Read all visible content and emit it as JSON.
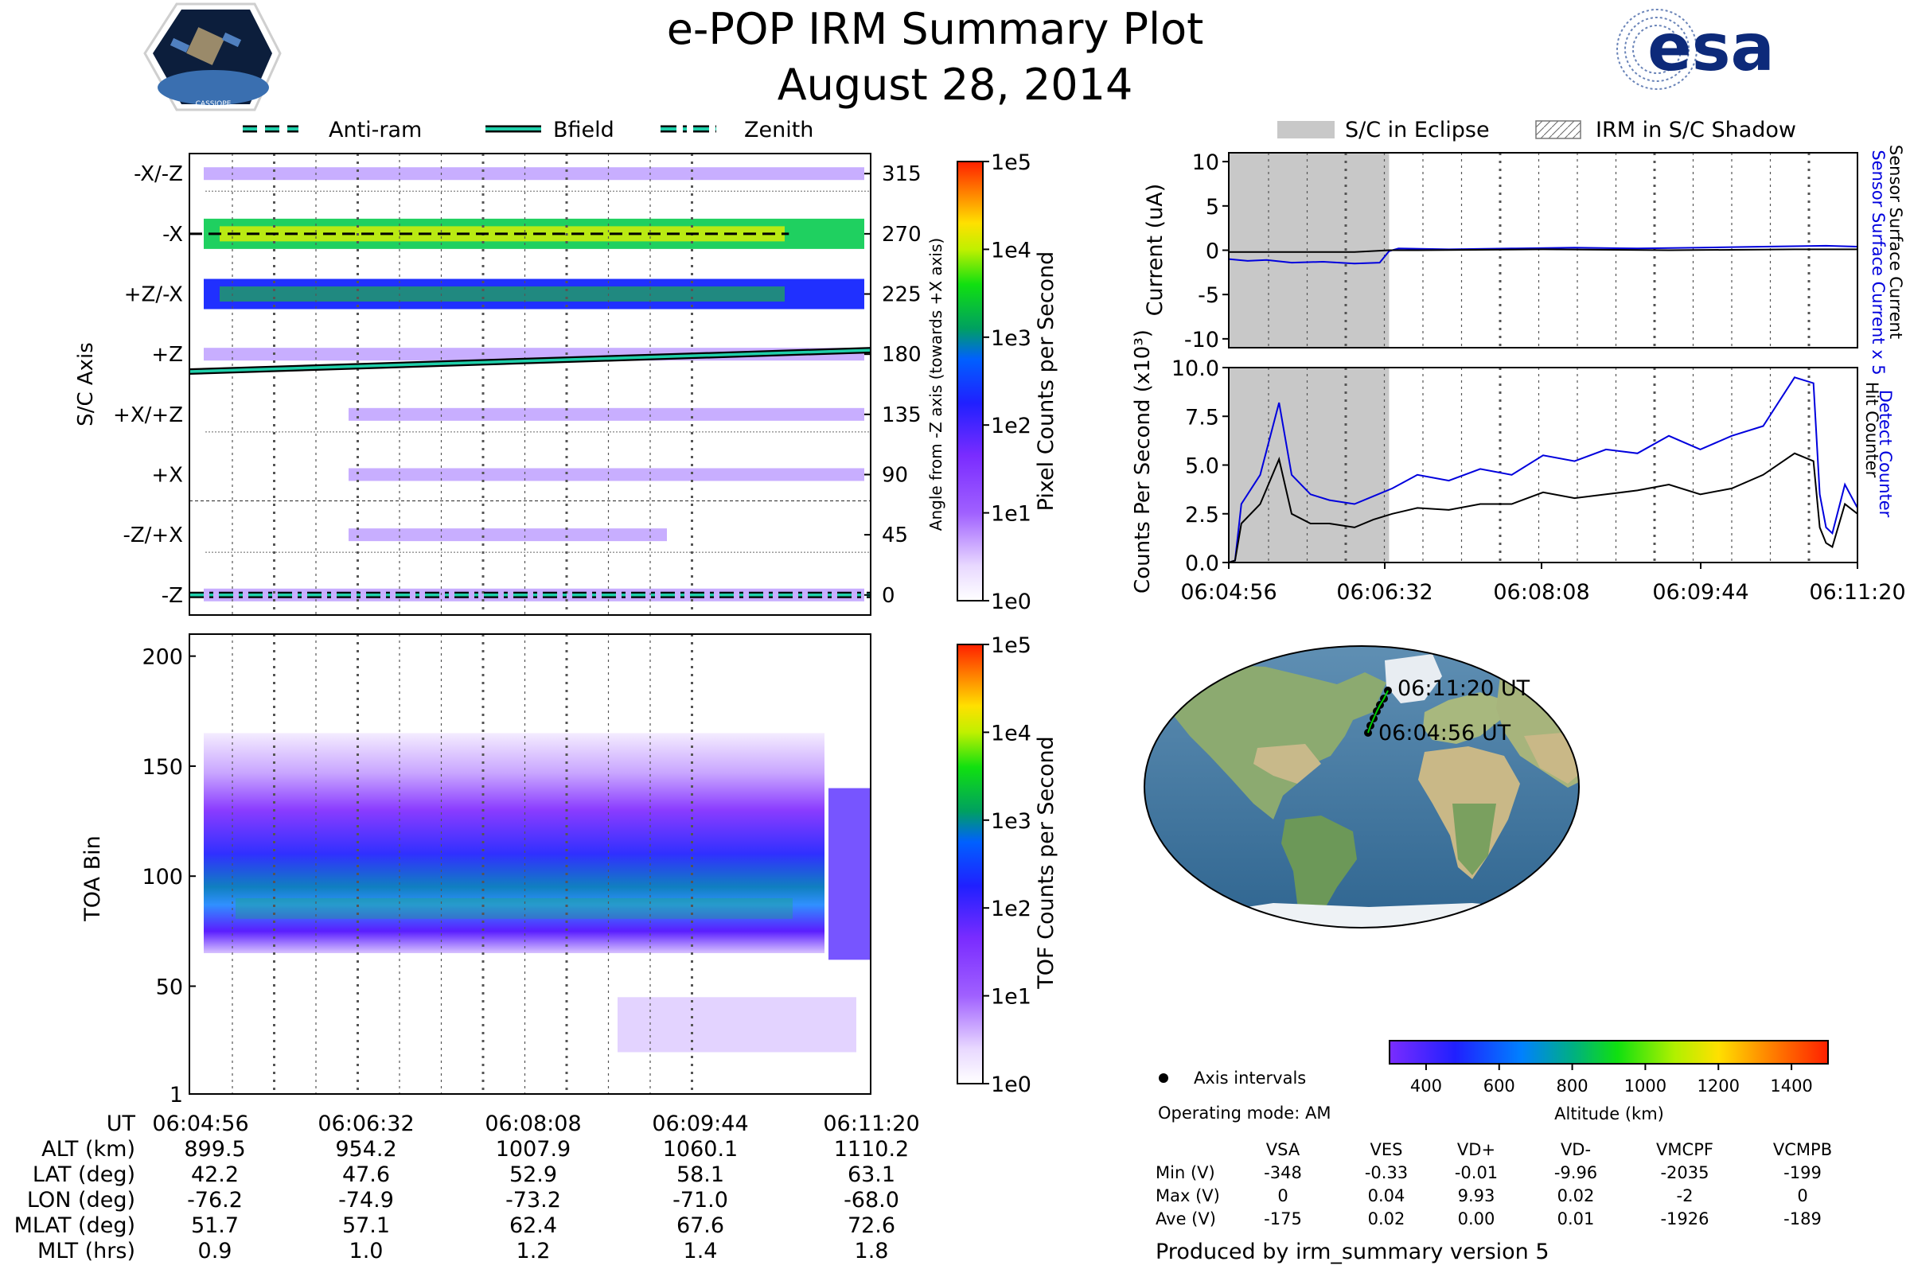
{
  "header": {
    "title": "e-POP IRM Summary Plot",
    "date": "August 28, 2014",
    "left_logo_text": "CASSIOPE",
    "right_logo_text": "esa"
  },
  "time_ticks": [
    "06:04:56",
    "06:06:32",
    "06:08:08",
    "06:09:44",
    "06:11:20"
  ],
  "colors": {
    "blue": "#0000dd",
    "black": "#000000",
    "eclipse": "#c8c8c8",
    "line_teal": "#1fcfaa",
    "grid": "#555555"
  },
  "chart_data": [
    {
      "id": "axis_angle",
      "type": "heatmap",
      "ylabel": "S/C Axis",
      "ylabel_right": "Angle from -Z axis (towards +X axis)",
      "y_categories": [
        "-X/-Z",
        "-X",
        "+Z/-X",
        "+Z",
        "+X/+Z",
        "+X",
        "-Z/+X",
        "-Z"
      ],
      "y_angle_ticks": [
        315,
        270,
        225,
        180,
        135,
        90,
        45,
        0
      ],
      "ylim": [
        -15,
        330
      ],
      "legend": [
        {
          "name": "Anti-ram",
          "style": "dashed"
        },
        {
          "name": "Bfield",
          "style": "solid"
        },
        {
          "name": "Zenith",
          "style": "dash-dot"
        }
      ],
      "colorbar": {
        "label": "Pixel Counts per Second",
        "scale": "log",
        "ticks": [
          "1e0",
          "1e1",
          "1e2",
          "1e3",
          "1e4",
          "1e5"
        ]
      },
      "bands": [
        {
          "angle": 270,
          "level": 3.0
        },
        {
          "angle": 225,
          "level": 2.0
        },
        {
          "angle": 315,
          "level": 0.8
        },
        {
          "angle": 180,
          "level": 0.6
        },
        {
          "angle": 135,
          "level": 0.4
        },
        {
          "angle": 90,
          "level": 0.4
        },
        {
          "angle": 45,
          "level": 0.6
        },
        {
          "angle": 0,
          "level": 0.5
        }
      ],
      "series": [
        {
          "name": "Bfield",
          "x": [
            0,
            1
          ],
          "y": [
            167,
            183
          ]
        },
        {
          "name": "Anti-ram",
          "x": [
            0,
            0.88
          ],
          "y": [
            270,
            270
          ]
        },
        {
          "name": "Zenith",
          "x": [
            0,
            1
          ],
          "y": [
            0,
            0
          ]
        }
      ]
    },
    {
      "id": "toa",
      "type": "heatmap",
      "ylabel": "TOA Bin",
      "yticks": [
        1,
        50,
        100,
        150,
        200
      ],
      "ylim": [
        1,
        210
      ],
      "colorbar": {
        "label": "TOF Counts per Second",
        "scale": "log",
        "ticks": [
          "1e0",
          "1e1",
          "1e2",
          "1e3",
          "1e4",
          "1e5"
        ]
      },
      "core_band": {
        "lower": 65,
        "upper": 165,
        "peak": 82
      }
    },
    {
      "id": "current",
      "type": "line",
      "ylabel": "Current (uA)",
      "ylim": [
        -11,
        11
      ],
      "yticks": [
        -10,
        -5,
        0,
        5,
        10
      ],
      "right_labels": [
        "Sensor Surface Current x 5",
        "Sensor Surface Current"
      ],
      "legend": [
        {
          "name": "S/C in Eclipse"
        },
        {
          "name": "IRM in S/C Shadow"
        }
      ],
      "eclipse": [
        0,
        0.255
      ],
      "series": [
        {
          "name": "Sensor Surface Current x 5",
          "color": "blue",
          "x": [
            0,
            0.03,
            0.06,
            0.1,
            0.15,
            0.2,
            0.24,
            0.255,
            0.27,
            0.35,
            0.45,
            0.55,
            0.65,
            0.75,
            0.85,
            0.95,
            1.0
          ],
          "y": [
            -1.0,
            -1.2,
            -1.1,
            -1.4,
            -1.3,
            -1.5,
            -1.4,
            -0.1,
            0.2,
            0.1,
            0.2,
            0.3,
            0.2,
            0.3,
            0.4,
            0.5,
            0.4
          ]
        },
        {
          "name": "Sensor Surface Current",
          "color": "black",
          "x": [
            0,
            0.1,
            0.2,
            0.255,
            0.3,
            0.5,
            0.7,
            0.9,
            1.0
          ],
          "y": [
            -0.2,
            -0.2,
            -0.2,
            0.0,
            0.0,
            0.1,
            0.0,
            0.1,
            0.1
          ]
        }
      ]
    },
    {
      "id": "counts",
      "type": "line",
      "ylabel": "Counts Per Second (x10³)",
      "ylim": [
        0,
        10
      ],
      "yticks": [
        0.0,
        2.5,
        5.0,
        7.5,
        10.0
      ],
      "right_labels": [
        "Detect Counter",
        "Hit Counter"
      ],
      "eclipse": [
        0,
        0.255
      ],
      "series": [
        {
          "name": "Detect Counter",
          "color": "blue",
          "x": [
            0,
            0.01,
            0.02,
            0.05,
            0.08,
            0.1,
            0.13,
            0.16,
            0.2,
            0.23,
            0.26,
            0.3,
            0.35,
            0.4,
            0.45,
            0.5,
            0.55,
            0.6,
            0.65,
            0.7,
            0.75,
            0.8,
            0.85,
            0.9,
            0.93,
            0.94,
            0.95,
            0.96,
            0.98,
            1.0
          ],
          "y": [
            0,
            0.1,
            3.0,
            4.5,
            8.2,
            4.5,
            3.5,
            3.2,
            3.0,
            3.4,
            3.8,
            4.5,
            4.2,
            4.8,
            4.5,
            5.5,
            5.2,
            5.8,
            5.6,
            6.5,
            5.8,
            6.5,
            7.0,
            9.5,
            9.2,
            3.5,
            1.8,
            1.5,
            4.0,
            2.8
          ]
        },
        {
          "name": "Hit Counter",
          "color": "black",
          "x": [
            0,
            0.01,
            0.02,
            0.05,
            0.08,
            0.1,
            0.13,
            0.16,
            0.2,
            0.23,
            0.26,
            0.3,
            0.35,
            0.4,
            0.45,
            0.5,
            0.55,
            0.6,
            0.65,
            0.7,
            0.75,
            0.8,
            0.85,
            0.9,
            0.93,
            0.94,
            0.95,
            0.96,
            0.98,
            1.0
          ],
          "y": [
            0,
            0.1,
            2.0,
            3.0,
            5.3,
            2.5,
            2.0,
            2.0,
            1.8,
            2.2,
            2.5,
            2.8,
            2.7,
            3.0,
            3.0,
            3.6,
            3.3,
            3.5,
            3.7,
            4.0,
            3.5,
            3.8,
            4.5,
            5.6,
            5.2,
            1.8,
            1.0,
            0.8,
            3.0,
            2.5
          ]
        }
      ]
    },
    {
      "id": "altitude_colorbar",
      "type": "colorbar",
      "label": "Altitude (km)",
      "ticks": [
        400,
        600,
        800,
        1000,
        1200,
        1400
      ],
      "range": [
        300,
        1500
      ]
    }
  ],
  "map": {
    "labels": [
      "06:11:20 UT",
      "06:04:56 UT"
    ],
    "legend_label": "Axis intervals",
    "operating_mode": "Operating mode: AM"
  },
  "stats": {
    "columns": [
      "VSA",
      "VES",
      "VD+",
      "VD-",
      "VMCPF",
      "VCMPB"
    ],
    "rows": [
      {
        "label": "Min (V)",
        "values": [
          "-348",
          "-0.33",
          "-0.01",
          "-9.96",
          "-2035",
          "-199"
        ]
      },
      {
        "label": "Max (V)",
        "values": [
          "0",
          "0.04",
          "9.93",
          "0.02",
          "-2",
          "0"
        ]
      },
      {
        "label": "Ave (V)",
        "values": [
          "-175",
          "0.02",
          "0.00",
          "0.01",
          "-1926",
          "-189"
        ]
      }
    ]
  },
  "footer": "Produced by irm_summary version 5",
  "ephemeris": {
    "rows": [
      {
        "label": "UT",
        "values": [
          "06:04:56",
          "06:06:32",
          "06:08:08",
          "06:09:44",
          "06:11:20"
        ]
      },
      {
        "label": "ALT (km)",
        "values": [
          "899.5",
          "954.2",
          "1007.9",
          "1060.1",
          "1110.2"
        ]
      },
      {
        "label": "LAT (deg)",
        "values": [
          "42.2",
          "47.6",
          "52.9",
          "58.1",
          "63.1"
        ]
      },
      {
        "label": "LON (deg)",
        "values": [
          "-76.2",
          "-74.9",
          "-73.2",
          "-71.0",
          "-68.0"
        ]
      },
      {
        "label": "MLAT (deg)",
        "values": [
          "51.7",
          "57.1",
          "62.4",
          "67.6",
          "72.6"
        ]
      },
      {
        "label": "MLT (hrs)",
        "values": [
          "0.9",
          "1.0",
          "1.2",
          "1.4",
          "1.8"
        ]
      }
    ]
  }
}
